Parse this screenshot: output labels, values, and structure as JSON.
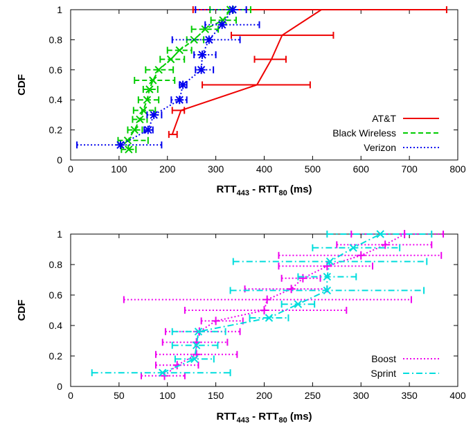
{
  "chart_data": [
    {
      "type": "scatter",
      "subtype": "cdf-with-error-bars",
      "title": "",
      "xlabel": "RTT443 - RTT80 (ms)",
      "xlabel_parts": {
        "base": "RTT",
        "sub1": "443",
        "mid": " - RTT",
        "sub2": "80",
        "unit": " (ms)"
      },
      "ylabel": "CDF",
      "xlim": [
        0,
        800
      ],
      "ylim": [
        0,
        1
      ],
      "xticks": [
        0,
        100,
        200,
        300,
        400,
        500,
        600,
        700,
        800
      ],
      "yticks": [
        0,
        0.2,
        0.4,
        0.6,
        0.8,
        1
      ],
      "ytick_labels": [
        "0",
        "0.2",
        "0.4",
        "0.6",
        "0.8",
        "1"
      ],
      "grid": false,
      "legend_position": "bottom-right",
      "series": [
        {
          "name": "AT&T",
          "color": "#ee0000",
          "line_style": "solid",
          "marker": "none",
          "points": [
            {
              "x": 210,
              "y": 0.17,
              "xmin": 203,
              "xmax": 220
            },
            {
              "x": 228,
              "y": 0.33,
              "xmin": 210,
              "xmax": 235
            },
            {
              "x": 385,
              "y": 0.5,
              "xmin": 272,
              "xmax": 495
            },
            {
              "x": 415,
              "y": 0.67,
              "xmin": 380,
              "xmax": 445
            },
            {
              "x": 437,
              "y": 0.83,
              "xmin": 332,
              "xmax": 543
            },
            {
              "x": 518,
              "y": 1.0,
              "xmin": 253,
              "xmax": 777
            }
          ]
        },
        {
          "name": "Black Wireless",
          "color": "#00cc00",
          "line_style": "dashed",
          "marker": "x",
          "points": [
            {
              "x": 120,
              "y": 0.07,
              "xmin": 105,
              "xmax": 135
            },
            {
              "x": 118,
              "y": 0.13,
              "xmin": 98,
              "xmax": 160
            },
            {
              "x": 132,
              "y": 0.2,
              "xmin": 118,
              "xmax": 148
            },
            {
              "x": 143,
              "y": 0.27,
              "xmin": 128,
              "xmax": 158
            },
            {
              "x": 150,
              "y": 0.33,
              "xmin": 130,
              "xmax": 175
            },
            {
              "x": 158,
              "y": 0.4,
              "xmin": 140,
              "xmax": 182
            },
            {
              "x": 163,
              "y": 0.47,
              "xmin": 150,
              "xmax": 180
            },
            {
              "x": 170,
              "y": 0.53,
              "xmin": 132,
              "xmax": 215
            },
            {
              "x": 182,
              "y": 0.6,
              "xmin": 155,
              "xmax": 212
            },
            {
              "x": 207,
              "y": 0.67,
              "xmin": 185,
              "xmax": 235
            },
            {
              "x": 225,
              "y": 0.73,
              "xmin": 200,
              "xmax": 250
            },
            {
              "x": 255,
              "y": 0.8,
              "xmin": 240,
              "xmax": 275
            },
            {
              "x": 278,
              "y": 0.87,
              "xmin": 250,
              "xmax": 305
            },
            {
              "x": 315,
              "y": 0.93,
              "xmin": 290,
              "xmax": 342
            },
            {
              "x": 330,
              "y": 1.0,
              "xmin": 288,
              "xmax": 372
            }
          ]
        },
        {
          "name": "Verizon",
          "color": "#0000ee",
          "line_style": "dotted",
          "marker": "star",
          "points": [
            {
              "x": 103,
              "y": 0.1,
              "xmin": 13,
              "xmax": 188
            },
            {
              "x": 160,
              "y": 0.2,
              "xmin": 152,
              "xmax": 170
            },
            {
              "x": 172,
              "y": 0.3,
              "xmin": 158,
              "xmax": 188
            },
            {
              "x": 225,
              "y": 0.4,
              "xmin": 208,
              "xmax": 240
            },
            {
              "x": 232,
              "y": 0.5,
              "xmin": 225,
              "xmax": 240
            },
            {
              "x": 270,
              "y": 0.6,
              "xmin": 258,
              "xmax": 295
            },
            {
              "x": 272,
              "y": 0.7,
              "xmin": 255,
              "xmax": 300
            },
            {
              "x": 286,
              "y": 0.8,
              "xmin": 210,
              "xmax": 350
            },
            {
              "x": 313,
              "y": 0.9,
              "xmin": 278,
              "xmax": 390
            },
            {
              "x": 335,
              "y": 1.0,
              "xmin": 258,
              "xmax": 363
            }
          ]
        }
      ]
    },
    {
      "type": "scatter",
      "subtype": "cdf-with-error-bars",
      "title": "",
      "xlabel": "RTT443 - RTT80 (ms)",
      "xlabel_parts": {
        "base": "RTT",
        "sub1": "443",
        "mid": " - RTT",
        "sub2": "80",
        "unit": " (ms)"
      },
      "ylabel": "CDF",
      "xlim": [
        0,
        400
      ],
      "ylim": [
        0,
        1
      ],
      "xticks": [
        0,
        50,
        100,
        150,
        200,
        250,
        300,
        350,
        400
      ],
      "yticks": [
        0,
        0.2,
        0.4,
        0.6,
        0.8,
        1
      ],
      "ytick_labels": [
        "0",
        "0.2",
        "0.4",
        "0.6",
        "0.8",
        "1"
      ],
      "grid": false,
      "legend_position": "bottom-right",
      "series": [
        {
          "name": "Boost",
          "color": "#ee00ee",
          "line_style": "dotted",
          "marker": "plus",
          "points": [
            {
              "x": 97,
              "y": 0.07,
              "xmin": 73,
              "xmax": 118
            },
            {
              "x": 110,
              "y": 0.14,
              "xmin": 88,
              "xmax": 132
            },
            {
              "x": 130,
              "y": 0.21,
              "xmin": 88,
              "xmax": 172
            },
            {
              "x": 130,
              "y": 0.29,
              "xmin": 95,
              "xmax": 162
            },
            {
              "x": 133,
              "y": 0.36,
              "xmin": 98,
              "xmax": 175
            },
            {
              "x": 150,
              "y": 0.43,
              "xmin": 135,
              "xmax": 178
            },
            {
              "x": 200,
              "y": 0.5,
              "xmin": 118,
              "xmax": 285
            },
            {
              "x": 203,
              "y": 0.57,
              "xmin": 55,
              "xmax": 352
            },
            {
              "x": 228,
              "y": 0.64,
              "xmin": 180,
              "xmax": 265
            },
            {
              "x": 240,
              "y": 0.71,
              "xmin": 218,
              "xmax": 258
            },
            {
              "x": 265,
              "y": 0.79,
              "xmin": 215,
              "xmax": 312
            },
            {
              "x": 300,
              "y": 0.86,
              "xmin": 215,
              "xmax": 383
            },
            {
              "x": 325,
              "y": 0.93,
              "xmin": 275,
              "xmax": 373
            },
            {
              "x": 345,
              "y": 1.0,
              "xmin": 290,
              "xmax": 385
            }
          ]
        },
        {
          "name": "Sprint",
          "color": "#00dddd",
          "line_style": "dashdot",
          "marker": "x",
          "points": [
            {
              "x": 95,
              "y": 0.09,
              "xmin": 22,
              "xmax": 165
            },
            {
              "x": 128,
              "y": 0.18,
              "xmin": 108,
              "xmax": 148
            },
            {
              "x": 130,
              "y": 0.27,
              "xmin": 105,
              "xmax": 152
            },
            {
              "x": 132,
              "y": 0.36,
              "xmin": 105,
              "xmax": 160
            },
            {
              "x": 205,
              "y": 0.45,
              "xmin": 185,
              "xmax": 225
            },
            {
              "x": 235,
              "y": 0.54,
              "xmin": 218,
              "xmax": 252
            },
            {
              "x": 265,
              "y": 0.63,
              "xmin": 165,
              "xmax": 365
            },
            {
              "x": 265,
              "y": 0.72,
              "xmin": 235,
              "xmax": 295
            },
            {
              "x": 268,
              "y": 0.82,
              "xmin": 168,
              "xmax": 368
            },
            {
              "x": 292,
              "y": 0.91,
              "xmin": 250,
              "xmax": 340
            },
            {
              "x": 320,
              "y": 1.0,
              "xmin": 265,
              "xmax": 373
            }
          ]
        }
      ]
    }
  ]
}
